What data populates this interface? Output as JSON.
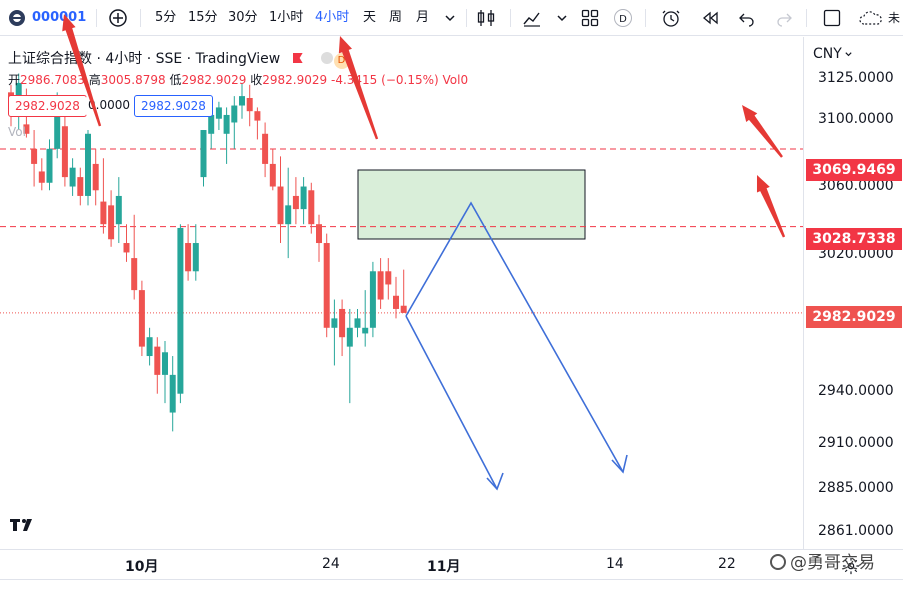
{
  "toolbar": {
    "symbol": "000001",
    "intervals": [
      "5分",
      "15分",
      "30分",
      "1小时",
      "4小时",
      "天",
      "周",
      "月"
    ],
    "active_interval": "4小时"
  },
  "legend": {
    "title": "上证综合指数 · 4小时 · SSE · TradingView",
    "badge_d": "D",
    "ohlc_open_label": "开",
    "ohlc_open": "2986.7083",
    "ohlc_high_label": "高",
    "ohlc_high": "3005.8798",
    "ohlc_low_label": "低",
    "ohlc_low": "2982.9029",
    "ohlc_close_label": "收",
    "ohlc_close": "2982.9029",
    "change": "-4.3415 (−0.15%)",
    "vol": "Vol0",
    "sell_price": "2982.9028",
    "spread": "0.0000",
    "buy_price": "2982.9028",
    "vol_label": "Vol"
  },
  "price_axis": {
    "currency": "CNY",
    "ticks": [
      "3125.0000",
      "3100.0000",
      "3060.0000",
      "3020.0000",
      "2940.0000",
      "2910.0000",
      "2885.0000",
      "2861.0000"
    ],
    "tag_upper": "3069.9469",
    "tag_lower": "3028.7338",
    "tag_last": "2982.9029"
  },
  "time_axis": {
    "labels": [
      "10月",
      "24",
      "11月",
      "14",
      "22"
    ]
  },
  "watermark": "@勇哥交易",
  "colors": {
    "up": "#26a69a",
    "down": "#ef5350",
    "accent": "#2962ff",
    "annotation_red": "#e53935",
    "zone_fill": "#d9eed9"
  },
  "chart_data": {
    "type": "candlestick",
    "candles": [
      [
        3100,
        3104,
        3082,
        3090
      ],
      [
        3090,
        3110,
        3080,
        3105
      ],
      [
        3083,
        3102,
        3076,
        3078
      ],
      [
        3070,
        3080,
        3050,
        3062
      ],
      [
        3058,
        3065,
        3048,
        3052
      ],
      [
        3052,
        3075,
        3048,
        3070
      ],
      [
        3070,
        3100,
        3065,
        3095
      ],
      [
        3082,
        3098,
        3050,
        3055
      ],
      [
        3050,
        3065,
        3045,
        3060
      ],
      [
        3055,
        3060,
        3040,
        3045
      ],
      [
        3045,
        3080,
        3040,
        3078
      ],
      [
        3062,
        3070,
        3040,
        3048
      ],
      [
        3042,
        3065,
        3025,
        3030
      ],
      [
        3040,
        3048,
        3018,
        3022
      ],
      [
        3030,
        3055,
        3020,
        3045
      ],
      [
        3020,
        3030,
        3010,
        3015
      ],
      [
        3012,
        3035,
        2990,
        2995
      ],
      [
        2995,
        3000,
        2960,
        2965
      ],
      [
        2960,
        2975,
        2955,
        2970
      ],
      [
        2965,
        2970,
        2940,
        2950
      ],
      [
        2950,
        2968,
        2935,
        2962
      ],
      [
        2930,
        2960,
        2920,
        2950
      ],
      [
        2940,
        3030,
        2935,
        3028
      ],
      [
        3020,
        3030,
        3000,
        3005
      ],
      [
        3005,
        3030,
        3000,
        3020
      ],
      [
        3055,
        3080,
        3050,
        3080
      ],
      [
        3078,
        3092,
        3070,
        3088
      ],
      [
        3086,
        3095,
        3080,
        3092
      ],
      [
        3078,
        3092,
        3062,
        3088
      ],
      [
        3084,
        3098,
        3070,
        3093
      ],
      [
        3093,
        3105,
        3086,
        3098
      ],
      [
        3097,
        3104,
        3082,
        3090
      ],
      [
        3090,
        3092,
        3075,
        3085
      ],
      [
        3078,
        3084,
        3055,
        3062
      ],
      [
        3062,
        3070,
        3048,
        3050
      ],
      [
        3050,
        3066,
        3020,
        3030
      ],
      [
        3030,
        3060,
        3012,
        3040
      ],
      [
        3045,
        3055,
        3030,
        3038
      ],
      [
        3038,
        3055,
        3030,
        3050
      ],
      [
        3048,
        3052,
        3025,
        3030
      ],
      [
        3030,
        3035,
        3010,
        3020
      ],
      [
        3020,
        3025,
        2970,
        2975
      ],
      [
        2975,
        2990,
        2955,
        2980
      ],
      [
        2985,
        2990,
        2960,
        2970
      ],
      [
        2965,
        2985,
        2935,
        2975
      ],
      [
        2975,
        2985,
        2970,
        2980
      ],
      [
        2972,
        2995,
        2965,
        2975
      ],
      [
        2975,
        3010,
        2970,
        3005
      ],
      [
        3005,
        3012,
        2985,
        2990
      ],
      [
        3005,
        3012,
        2990,
        2998
      ],
      [
        2992,
        3002,
        2980,
        2985
      ],
      [
        2986.7083,
        3005.8798,
        2982.9029,
        2982.9029
      ]
    ],
    "resistance_upper": 3069.9469,
    "resistance_lower": 3028.7338,
    "last_price": 2982.9029
  }
}
